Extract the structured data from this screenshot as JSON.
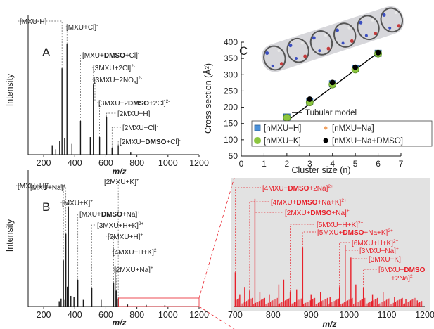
{
  "chart_data": [
    {
      "panel": "A",
      "type": "bar",
      "xlabel": "m/z",
      "ylabel": "Intensity",
      "xlim": [
        100,
        1200
      ],
      "xticks": [
        200,
        400,
        600,
        800,
        1000,
        1200
      ],
      "grid": false,
      "peaks": [
        {
          "x": 255,
          "y": 0.07
        },
        {
          "x": 278,
          "y": 0.04
        },
        {
          "x": 303,
          "y": 0.1
        },
        {
          "x": 318,
          "y": 0.64
        },
        {
          "x": 335,
          "y": 0.12
        },
        {
          "x": 350,
          "y": 0.82
        },
        {
          "x": 382,
          "y": 0.08
        },
        {
          "x": 437,
          "y": 0.25
        },
        {
          "x": 500,
          "y": 0.13
        },
        {
          "x": 520,
          "y": 0.52
        },
        {
          "x": 560,
          "y": 0.13
        },
        {
          "x": 605,
          "y": 0.28
        },
        {
          "x": 640,
          "y": 0.05
        },
        {
          "x": 680,
          "y": 0.07
        },
        {
          "x": 760,
          "y": 0.02
        }
      ],
      "annotations": [
        {
          "x": 318,
          "y": 0.64,
          "parts": [
            {
              "t": "[MXU-H]"
            },
            {
              "t": "-",
              "sup": true
            }
          ]
        },
        {
          "x": 350,
          "y": 0.82,
          "parts": [
            {
              "t": "[MXU+Cl]"
            },
            {
              "t": "-",
              "sup": true
            }
          ]
        },
        {
          "x": 437,
          "y": 0.25,
          "parts": [
            {
              "t": "[MXU+"
            },
            {
              "t": "DMSO",
              "b": true
            },
            {
              "t": "+Cl]"
            },
            {
              "t": "-",
              "sup": true
            }
          ]
        },
        {
          "x": 520,
          "y": 0.52,
          "parts": [
            {
              "t": "[3MXU+2Cl]"
            },
            {
              "t": "2-",
              "sup": true
            }
          ]
        },
        {
          "x": 530,
          "y": 0.4,
          "parts": [
            {
              "t": "[3MXU+2NO"
            },
            {
              "t": "3",
              "sub": true
            },
            {
              "t": "]"
            },
            {
              "t": "2-",
              "sup": true
            }
          ]
        },
        {
          "x": 560,
          "y": 0.13,
          "parts": [
            {
              "t": "[3MXU+2"
            },
            {
              "t": "DMSO",
              "b": true
            },
            {
              "t": "+2Cl]"
            },
            {
              "t": "2-",
              "sup": true
            }
          ]
        },
        {
          "x": 605,
          "y": 0.28,
          "parts": [
            {
              "t": "[2MXU+H]"
            },
            {
              "t": "-",
              "sup": true
            }
          ]
        },
        {
          "x": 640,
          "y": 0.05,
          "parts": [
            {
              "t": "[2MXU+Cl]"
            },
            {
              "t": "-",
              "sup": true
            }
          ]
        },
        {
          "x": 680,
          "y": 0.07,
          "parts": [
            {
              "t": "[2MXU+"
            },
            {
              "t": "DMSO",
              "b": true
            },
            {
              "t": "+Cl]"
            },
            {
              "t": "-",
              "sup": true
            }
          ]
        }
      ]
    },
    {
      "panel": "B",
      "type": "bar",
      "xlabel": "m/z",
      "ylabel": "Intensity",
      "xlim": [
        100,
        1200
      ],
      "xticks": [
        200,
        400,
        600,
        800,
        1000,
        1200
      ],
      "grid": false,
      "peaks": [
        {
          "x": 300,
          "y": 0.04
        },
        {
          "x": 312,
          "y": 0.06
        },
        {
          "x": 327,
          "y": 0.35
        },
        {
          "x": 337,
          "y": 0.05
        },
        {
          "x": 343,
          "y": 0.55
        },
        {
          "x": 352,
          "y": 0.15
        },
        {
          "x": 359,
          "y": 0.75
        },
        {
          "x": 375,
          "y": 0.08
        },
        {
          "x": 395,
          "y": 0.07
        },
        {
          "x": 420,
          "y": 0.2
        },
        {
          "x": 455,
          "y": 0.05
        },
        {
          "x": 510,
          "y": 0.14
        },
        {
          "x": 570,
          "y": 0.05
        },
        {
          "x": 650,
          "y": 0.18
        },
        {
          "x": 660,
          "y": 0.3
        },
        {
          "x": 667,
          "y": 0.12
        },
        {
          "x": 680,
          "y": 0.06
        },
        {
          "x": 740,
          "y": 0.015
        },
        {
          "x": 860,
          "y": 0.012
        },
        {
          "x": 980,
          "y": 0.01
        }
      ],
      "annotations": [
        {
          "x": 327,
          "y": 0.35,
          "parts": [
            {
              "t": "[MXU+H]"
            },
            {
              "t": "+",
              "sup": true
            }
          ]
        },
        {
          "x": 343,
          "y": 0.55,
          "parts": [
            {
              "t": "[MXU+Na]"
            },
            {
              "t": "+",
              "sup": true
            }
          ]
        },
        {
          "x": 359,
          "y": 0.75,
          "parts": [
            {
              "t": "[MXU+K]"
            },
            {
              "t": "+",
              "sup": true
            }
          ]
        },
        {
          "x": 420,
          "y": 0.2,
          "parts": [
            {
              "t": "[MXU+"
            },
            {
              "t": "DMSO",
              "b": true
            },
            {
              "t": "+Na]"
            },
            {
              "t": "+",
              "sup": true
            }
          ]
        },
        {
          "x": 510,
          "y": 0.14,
          "parts": [
            {
              "t": "[3MXU+H+K]"
            },
            {
              "t": "2+",
              "sup": true
            }
          ]
        },
        {
          "x": 650,
          "y": 0.18,
          "parts": [
            {
              "t": "[2MXU+H]"
            },
            {
              "t": "+",
              "sup": true
            }
          ]
        },
        {
          "x": 660,
          "y": 0.3,
          "parts": [
            {
              "t": "[4MXU+H+K]"
            },
            {
              "t": "2+",
              "sup": true
            }
          ]
        },
        {
          "x": 667,
          "y": 0.12,
          "parts": [
            {
              "t": "[2MXU+Na]"
            },
            {
              "t": "+",
              "sup": true
            }
          ]
        },
        {
          "x": 680,
          "y": 0.06,
          "parts": [
            {
              "t": "[2MXU+K]"
            },
            {
              "t": "+",
              "sup": true
            }
          ]
        }
      ]
    },
    {
      "panel": "C",
      "type": "scatter",
      "xlabel": "Cluster size (n)",
      "ylabel": "Cross section (Å²)",
      "xlim": [
        0,
        7
      ],
      "ylim": [
        50,
        400
      ],
      "xticks": [
        0,
        1,
        2,
        3,
        4,
        5,
        6,
        7
      ],
      "yticks": [
        50,
        100,
        150,
        200,
        250,
        300,
        350,
        400
      ],
      "grid": false,
      "legend_placement": "bottom",
      "model_line": {
        "name": "Tubular model",
        "x": [
          1,
          6
        ],
        "y": [
          105,
          368
        ],
        "color": "#000000"
      },
      "series": [
        {
          "name": "[nMXU+H]",
          "marker": "square",
          "color": "#4a90d9",
          "x": [
            1,
            2,
            3,
            4,
            5,
            6
          ],
          "y": [
            107,
            170,
            218,
            272,
            320,
            366
          ]
        },
        {
          "name": "[nMXU+Na]",
          "marker": "dot",
          "color": "#f0a060",
          "x": [
            1,
            2,
            3,
            4,
            5,
            6
          ],
          "y": [
            108,
            171,
            220,
            274,
            322,
            367
          ]
        },
        {
          "name": "[nMXU+K]",
          "marker": "circle",
          "color": "#8cc63f",
          "x": [
            1,
            2,
            3,
            4,
            5,
            6
          ],
          "y": [
            106,
            168,
            215,
            270,
            316,
            365
          ]
        },
        {
          "name": "[nMXU+Na+DMSO]",
          "marker": "circle",
          "color": "#000000",
          "x": [
            3,
            4,
            5,
            6
          ],
          "y": [
            225,
            276,
            323,
            368
          ]
        }
      ]
    },
    {
      "panel": "B-inset",
      "type": "bar",
      "xlabel": "m/z",
      "xlim": [
        690,
        1200
      ],
      "xticks": [
        700,
        800,
        900,
        1000,
        1100,
        1200
      ],
      "grid": false,
      "color": "#e8202a",
      "background": "#e2e2e2",
      "peaks": [
        {
          "x": 700,
          "y": 0.28
        },
        {
          "x": 712,
          "y": 0.1
        },
        {
          "x": 725,
          "y": 0.16
        },
        {
          "x": 738,
          "y": 0.13
        },
        {
          "x": 752,
          "y": 0.88
        },
        {
          "x": 765,
          "y": 0.12
        },
        {
          "x": 790,
          "y": 0.1
        },
        {
          "x": 815,
          "y": 0.18
        },
        {
          "x": 828,
          "y": 0.22
        },
        {
          "x": 845,
          "y": 0.12
        },
        {
          "x": 862,
          "y": 0.14
        },
        {
          "x": 878,
          "y": 0.48
        },
        {
          "x": 900,
          "y": 0.1
        },
        {
          "x": 925,
          "y": 0.12
        },
        {
          "x": 950,
          "y": 0.08
        },
        {
          "x": 975,
          "y": 0.16
        },
        {
          "x": 990,
          "y": 0.5
        },
        {
          "x": 1005,
          "y": 0.4
        },
        {
          "x": 1018,
          "y": 0.18
        },
        {
          "x": 1038,
          "y": 0.15
        },
        {
          "x": 1062,
          "y": 0.1
        },
        {
          "x": 1090,
          "y": 0.12
        },
        {
          "x": 1120,
          "y": 0.08
        },
        {
          "x": 1150,
          "y": 0.06
        },
        {
          "x": 1180,
          "y": 0.05
        }
      ],
      "annotations": [
        {
          "x": 700,
          "y": 0.28,
          "parts": [
            {
              "t": "[4MXU+"
            },
            {
              "t": "DMSO",
              "b": true
            },
            {
              "t": "+2Na]"
            },
            {
              "t": "2+",
              "sup": true
            }
          ]
        },
        {
          "x": 738,
          "y": 0.13,
          "parts": [
            {
              "t": "[4MXU+"
            },
            {
              "t": "DMSO",
              "b": true
            },
            {
              "t": "+Na+K]"
            },
            {
              "t": "2+",
              "sup": true
            }
          ]
        },
        {
          "x": 752,
          "y": 0.88,
          "parts": [
            {
              "t": "[2MXU+"
            },
            {
              "t": "DMSO",
              "b": true
            },
            {
              "t": "+Na]"
            },
            {
              "t": "+",
              "sup": true
            }
          ]
        },
        {
          "x": 845,
          "y": 0.12,
          "parts": [
            {
              "t": "[5MXU+H+K]"
            },
            {
              "t": "2+",
              "sup": true
            }
          ]
        },
        {
          "x": 878,
          "y": 0.48,
          "parts": [
            {
              "t": "[5MXU+"
            },
            {
              "t": "DMSO",
              "b": true
            },
            {
              "t": "+Na+K]"
            },
            {
              "t": "2+",
              "sup": true
            }
          ]
        },
        {
          "x": 975,
          "y": 0.16,
          "parts": [
            {
              "t": "[6MXU+H+K]"
            },
            {
              "t": "2+",
              "sup": true
            }
          ]
        },
        {
          "x": 990,
          "y": 0.5,
          "parts": [
            {
              "t": "[3MXU+Na]"
            },
            {
              "t": "+",
              "sup": true
            }
          ]
        },
        {
          "x": 1005,
          "y": 0.4,
          "parts": [
            {
              "t": "[3MXU+K]"
            },
            {
              "t": "+",
              "sup": true
            }
          ]
        },
        {
          "x": 1038,
          "y": 0.15,
          "parts": [
            {
              "t": "[6MXU+"
            },
            {
              "t": "DMSO",
              "b": true
            }
          ]
        },
        {
          "x": 1038,
          "y": 0.15,
          "parts": [
            {
              "t": "+2Na]"
            },
            {
              "t": "2+",
              "sup": true
            }
          ]
        }
      ]
    }
  ]
}
